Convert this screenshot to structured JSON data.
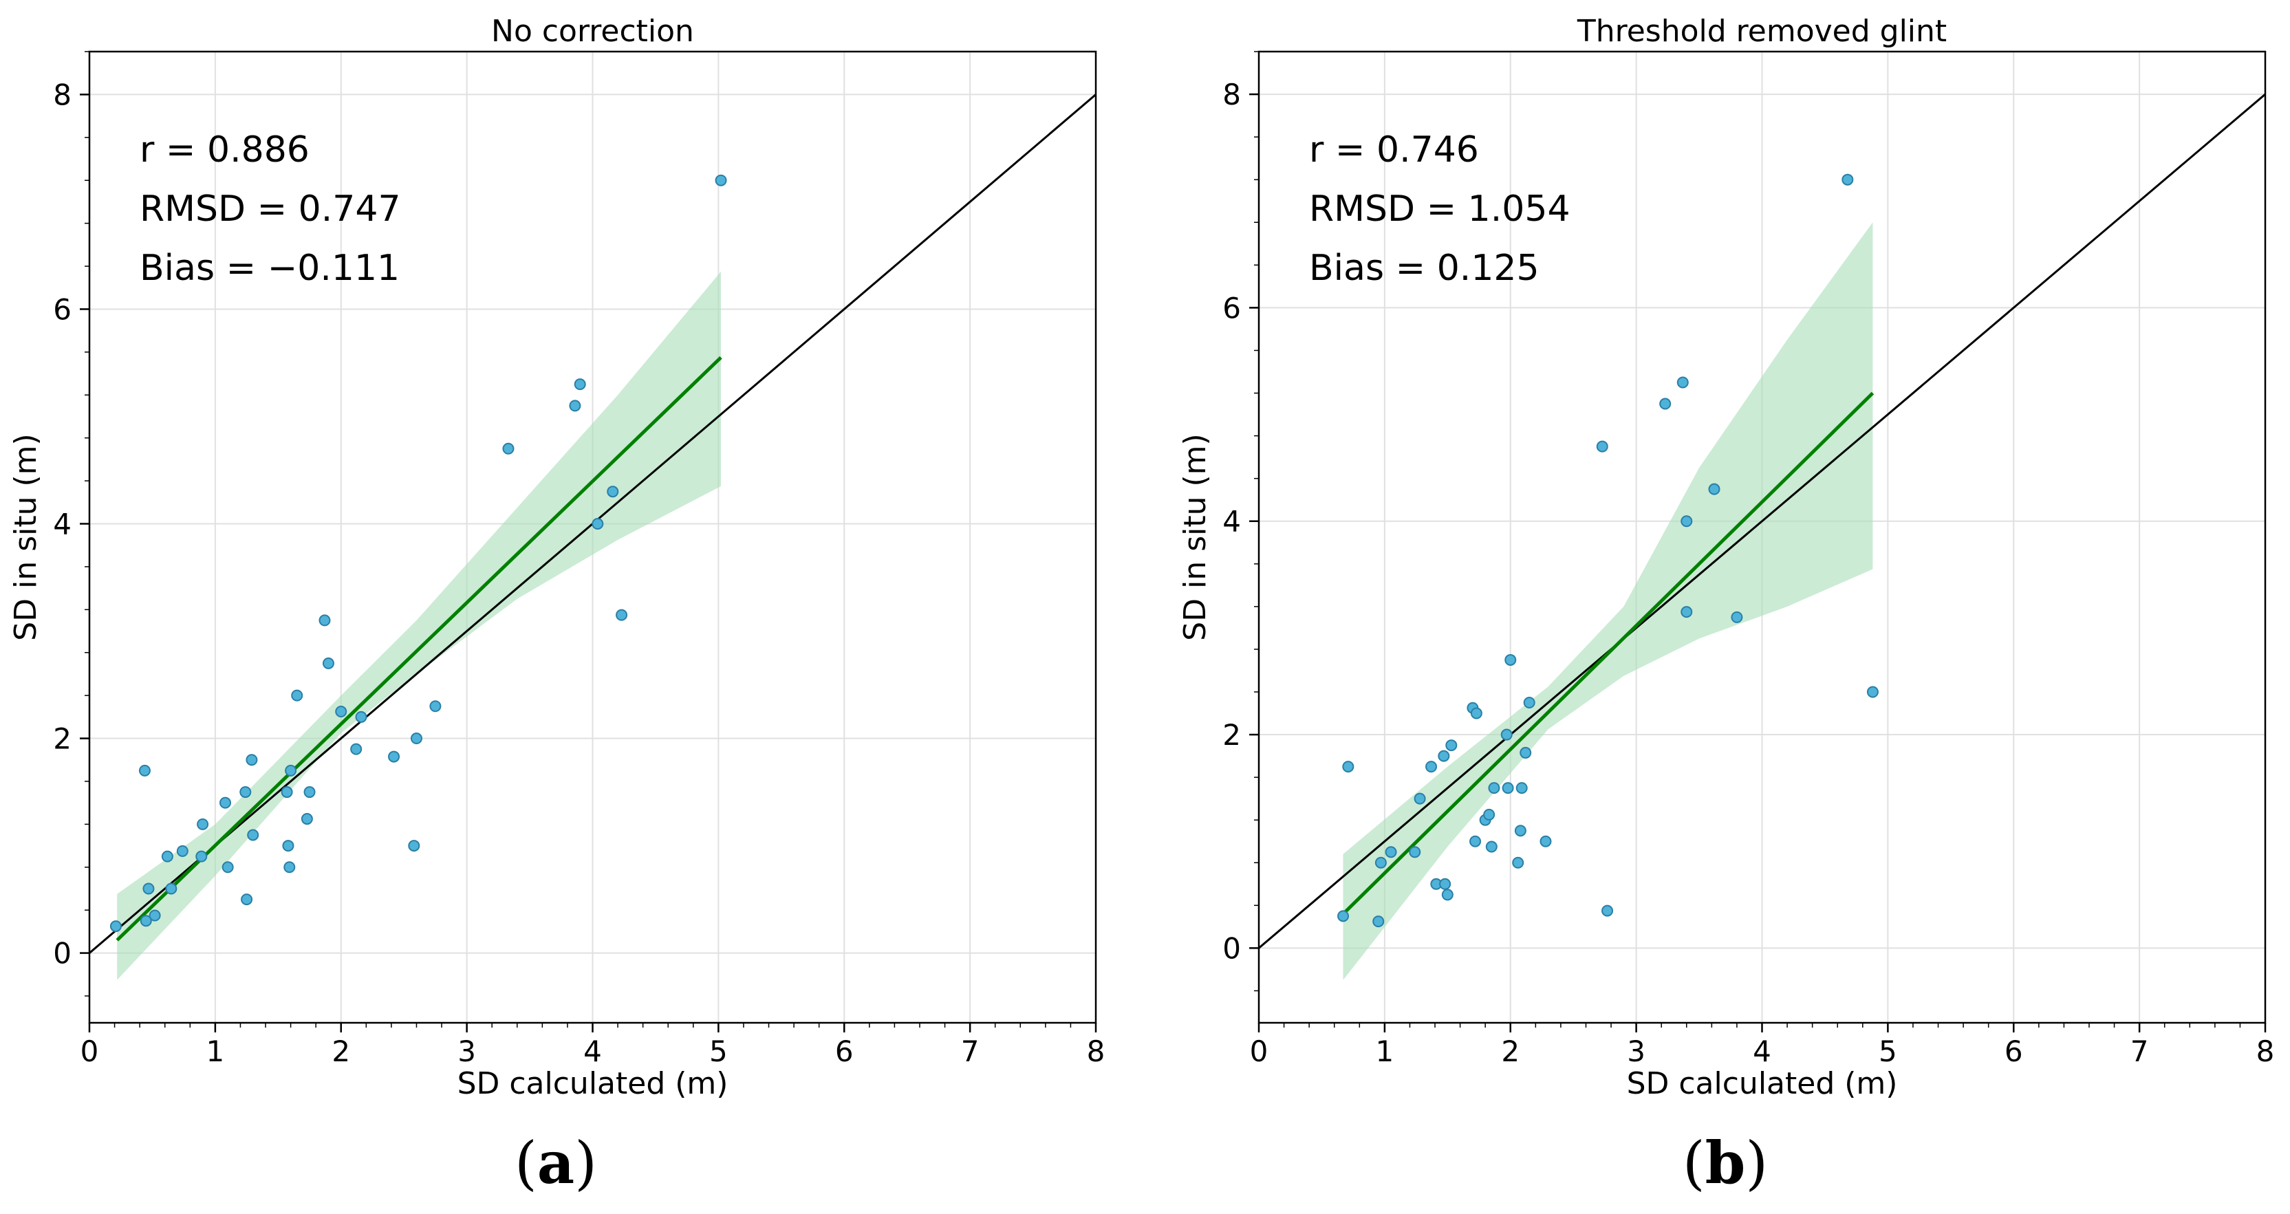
{
  "colors": {
    "point_fill": "#4fb3d9",
    "point_edge": "#2a7fa6",
    "fit_line": "#008000",
    "ci_band": "#a9ddb8",
    "identity_line": "#000000",
    "grid": "#e0e0e0"
  },
  "chart_data": [
    {
      "type": "scatter",
      "panel_label": "(a)",
      "panel_letter": "a",
      "title": "No correction",
      "xlabel": "SD calculated (m)",
      "ylabel": "SD in situ (m)",
      "xlim": [
        0,
        8
      ],
      "ylim": [
        -0.65,
        8.4
      ],
      "xticks": [
        "0",
        "1",
        "2",
        "3",
        "4",
        "5",
        "6",
        "7",
        "8"
      ],
      "yticks": [
        "0",
        "2",
        "4",
        "6",
        "8"
      ],
      "grid": true,
      "stats": [
        "r = 0.886",
        "RMSD = 0.747",
        "Bias = −0.111"
      ],
      "identity_line": [
        [
          0,
          0
        ],
        [
          8,
          8
        ]
      ],
      "fit_line": [
        [
          0.22,
          0.12
        ],
        [
          5.02,
          5.55
        ]
      ],
      "ci_band": {
        "x": [
          0.22,
          1.0,
          2.0,
          2.6,
          3.4,
          4.2,
          5.02
        ],
        "upper": [
          0.55,
          1.2,
          2.4,
          3.1,
          4.15,
          5.2,
          6.35
        ],
        "lower": [
          -0.25,
          0.72,
          2.05,
          2.6,
          3.3,
          3.85,
          4.35
        ]
      },
      "points": [
        [
          0.21,
          0.25
        ],
        [
          0.44,
          1.7
        ],
        [
          0.45,
          0.3
        ],
        [
          0.47,
          0.6
        ],
        [
          0.52,
          0.35
        ],
        [
          0.62,
          0.9
        ],
        [
          0.65,
          0.6
        ],
        [
          0.74,
          0.95
        ],
        [
          0.89,
          0.9
        ],
        [
          0.9,
          1.2
        ],
        [
          1.08,
          1.4
        ],
        [
          1.1,
          0.8
        ],
        [
          1.24,
          1.5
        ],
        [
          1.25,
          0.5
        ],
        [
          1.29,
          1.8
        ],
        [
          1.3,
          1.1
        ],
        [
          1.57,
          1.5
        ],
        [
          1.58,
          1.0
        ],
        [
          1.59,
          0.8
        ],
        [
          1.6,
          1.7
        ],
        [
          1.65,
          2.4
        ],
        [
          1.73,
          1.25
        ],
        [
          1.75,
          1.5
        ],
        [
          1.87,
          3.1
        ],
        [
          1.9,
          2.7
        ],
        [
          2.0,
          2.25
        ],
        [
          2.12,
          1.9
        ],
        [
          2.16,
          2.2
        ],
        [
          2.42,
          1.83
        ],
        [
          2.58,
          1.0
        ],
        [
          2.6,
          2.0
        ],
        [
          2.75,
          2.3
        ],
        [
          3.33,
          4.7
        ],
        [
          3.86,
          5.1
        ],
        [
          3.9,
          5.3
        ],
        [
          4.04,
          4.0
        ],
        [
          4.16,
          4.3
        ],
        [
          4.23,
          3.15
        ],
        [
          5.02,
          7.2
        ]
      ]
    },
    {
      "type": "scatter",
      "panel_label": "(b)",
      "panel_letter": "b",
      "title": "Threshold removed glint",
      "xlabel": "SD calculated (m)",
      "ylabel": "SD in situ (m)",
      "xlim": [
        0,
        8
      ],
      "ylim": [
        -0.7,
        8.4
      ],
      "xticks": [
        "0",
        "1",
        "2",
        "3",
        "4",
        "5",
        "6",
        "7",
        "8"
      ],
      "yticks": [
        "0",
        "2",
        "4",
        "6",
        "8"
      ],
      "grid": true,
      "stats": [
        "r = 0.746",
        "RMSD = 1.054",
        "Bias = 0.125"
      ],
      "identity_line": [
        [
          0,
          0
        ],
        [
          8,
          8
        ]
      ],
      "fit_line": [
        [
          0.67,
          0.32
        ],
        [
          4.88,
          5.2
        ]
      ],
      "ci_band": {
        "x": [
          0.67,
          1.5,
          2.3,
          2.9,
          3.5,
          4.2,
          4.88
        ],
        "upper": [
          0.88,
          1.7,
          2.45,
          3.2,
          4.5,
          5.7,
          6.8
        ],
        "lower": [
          -0.3,
          0.95,
          2.05,
          2.55,
          2.9,
          3.2,
          3.55
        ]
      },
      "points": [
        [
          0.67,
          0.3
        ],
        [
          0.71,
          1.7
        ],
        [
          0.95,
          0.25
        ],
        [
          0.97,
          0.8
        ],
        [
          1.05,
          0.9
        ],
        [
          1.24,
          0.9
        ],
        [
          1.28,
          1.4
        ],
        [
          1.37,
          1.7
        ],
        [
          1.41,
          0.6
        ],
        [
          1.47,
          1.8
        ],
        [
          1.48,
          0.6
        ],
        [
          1.5,
          0.5
        ],
        [
          1.53,
          1.9
        ],
        [
          1.7,
          2.25
        ],
        [
          1.72,
          1.0
        ],
        [
          1.73,
          2.2
        ],
        [
          1.8,
          1.2
        ],
        [
          1.83,
          1.25
        ],
        [
          1.85,
          0.95
        ],
        [
          1.87,
          1.5
        ],
        [
          1.97,
          2.0
        ],
        [
          1.98,
          1.5
        ],
        [
          2.0,
          2.7
        ],
        [
          2.06,
          0.8
        ],
        [
          2.08,
          1.1
        ],
        [
          2.09,
          1.5
        ],
        [
          2.12,
          1.83
        ],
        [
          2.15,
          2.3
        ],
        [
          2.28,
          1.0
        ],
        [
          2.73,
          4.7
        ],
        [
          2.77,
          0.35
        ],
        [
          3.23,
          5.1
        ],
        [
          3.37,
          5.3
        ],
        [
          3.4,
          4.0
        ],
        [
          3.4,
          3.15
        ],
        [
          3.62,
          4.3
        ],
        [
          3.8,
          3.1
        ],
        [
          4.68,
          7.2
        ],
        [
          4.88,
          2.4
        ]
      ]
    }
  ]
}
